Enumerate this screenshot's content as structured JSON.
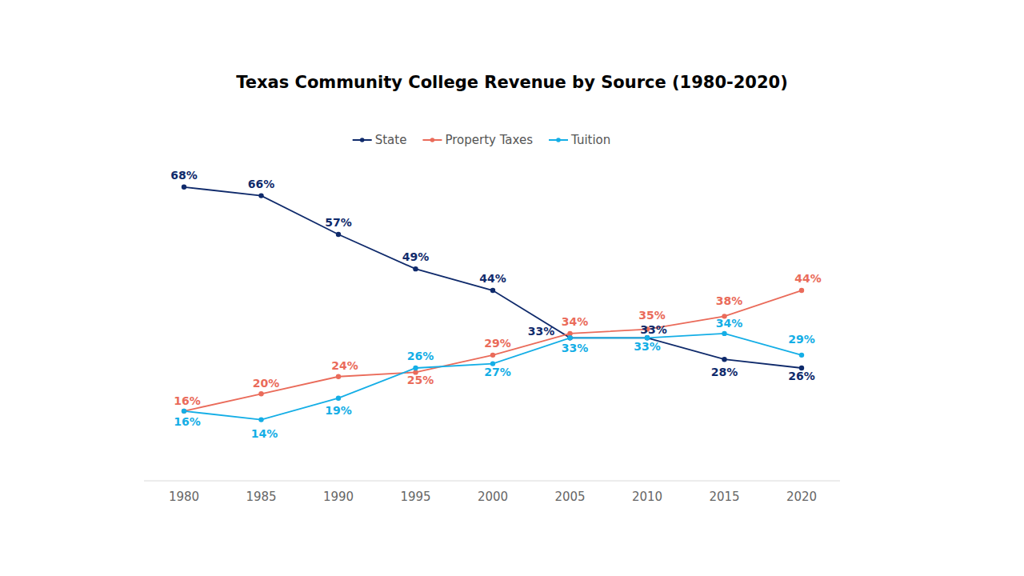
{
  "chart_data": {
    "type": "line",
    "title": "Texas Community College Revenue by Source (1980-2020)",
    "categories": [
      "1980",
      "1985",
      "1990",
      "1995",
      "2000",
      "2005",
      "2010",
      "2015",
      "2020"
    ],
    "series": [
      {
        "name": "State",
        "color": "#0f2a6b",
        "marker": "circle",
        "values": [
          68,
          66,
          57,
          49,
          44,
          33,
          33,
          28,
          26
        ],
        "value_labels": [
          "68%",
          "66%",
          "57%",
          "49%",
          "44%",
          "33%",
          "33%",
          "28%",
          "26%"
        ]
      },
      {
        "name": "Property Taxes",
        "color": "#ea6b5a",
        "marker": "circle",
        "values": [
          16,
          20,
          24,
          25,
          29,
          34,
          35,
          38,
          44
        ],
        "value_labels": [
          "16%",
          "20%",
          "24%",
          "25%",
          "29%",
          "34%",
          "35%",
          "38%",
          "44%"
        ]
      },
      {
        "name": "Tuition",
        "color": "#14aee6",
        "marker": "circle",
        "values": [
          16,
          14,
          19,
          26,
          27,
          33,
          33,
          34,
          29
        ],
        "value_labels": [
          "16%",
          "14%",
          "19%",
          "26%",
          "27%",
          "33%",
          "33%",
          "34%",
          "29%"
        ]
      }
    ],
    "ylim": [
      0,
      70
    ],
    "grid": false,
    "legend": "top",
    "data_labels": true,
    "tick_labels": "x"
  }
}
